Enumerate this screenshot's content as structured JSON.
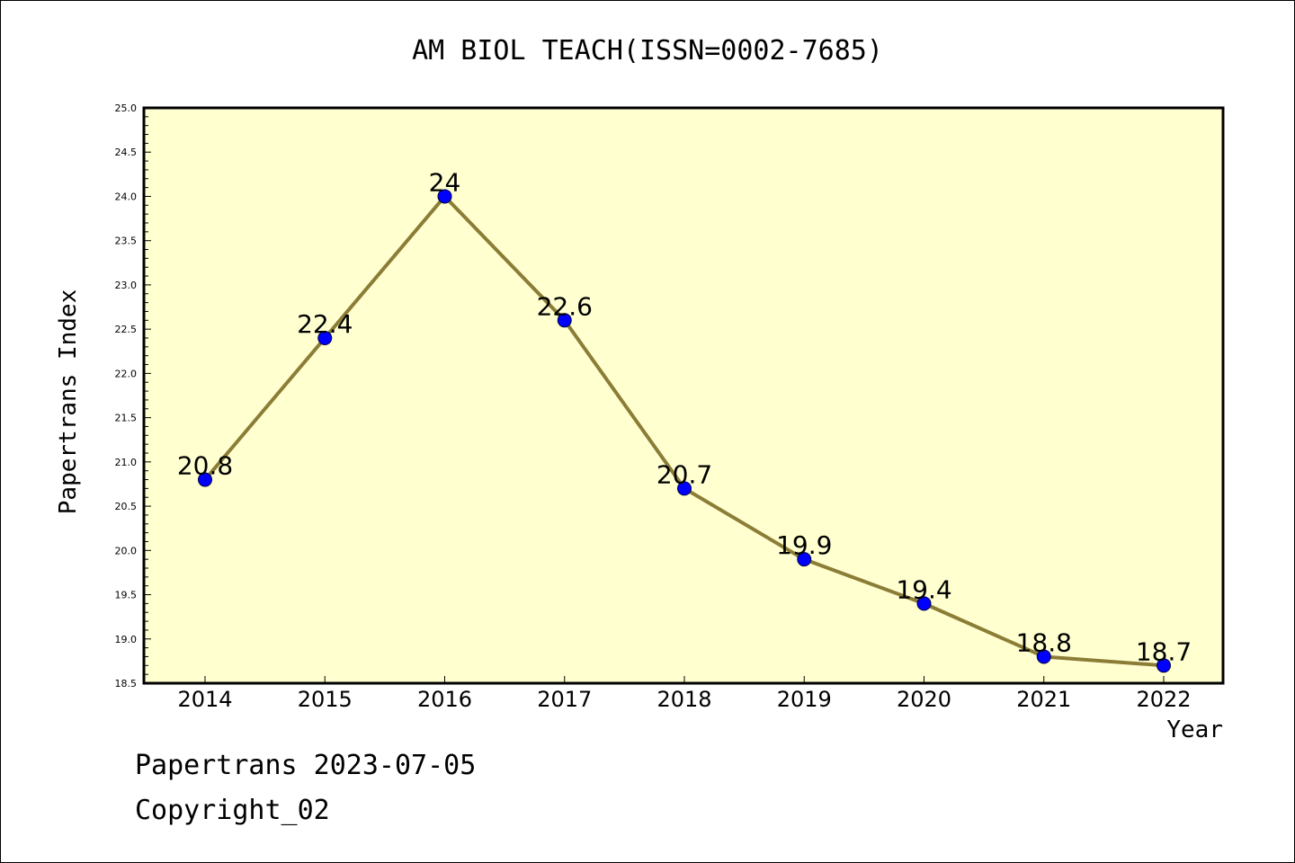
{
  "chart_data": {
    "type": "line",
    "title": "AM BIOL TEACH(ISSN=0002-7685)",
    "xlabel": "Year",
    "ylabel": "Papertrans Index",
    "categories": [
      "2014",
      "2015",
      "2016",
      "2017",
      "2018",
      "2019",
      "2020",
      "2021",
      "2022"
    ],
    "series": [
      {
        "values": [
          20.8,
          22.4,
          24,
          22.6,
          20.7,
          19.9,
          19.4,
          18.8,
          18.7
        ]
      }
    ],
    "data_labels": [
      "20.8",
      "22.4",
      "24",
      "22.6",
      "20.7",
      "19.9",
      "19.4",
      "18.8",
      "18.7"
    ],
    "ylim": [
      18.5,
      25.0
    ],
    "yticks": [
      "18.5",
      "19.0",
      "19.5",
      "20.0",
      "20.5",
      "21.0",
      "21.5",
      "22.0",
      "22.5",
      "23.0",
      "23.5",
      "24.0",
      "24.5",
      "25.0"
    ],
    "grid": false,
    "legend": "none",
    "colors": {
      "plot_background": "#ffffd0",
      "line": "#8b7d36",
      "marker": "#0000ff"
    }
  },
  "footer": {
    "date_line": "Papertrans 2023-07-05",
    "copyright_line": "Copyright_02"
  }
}
